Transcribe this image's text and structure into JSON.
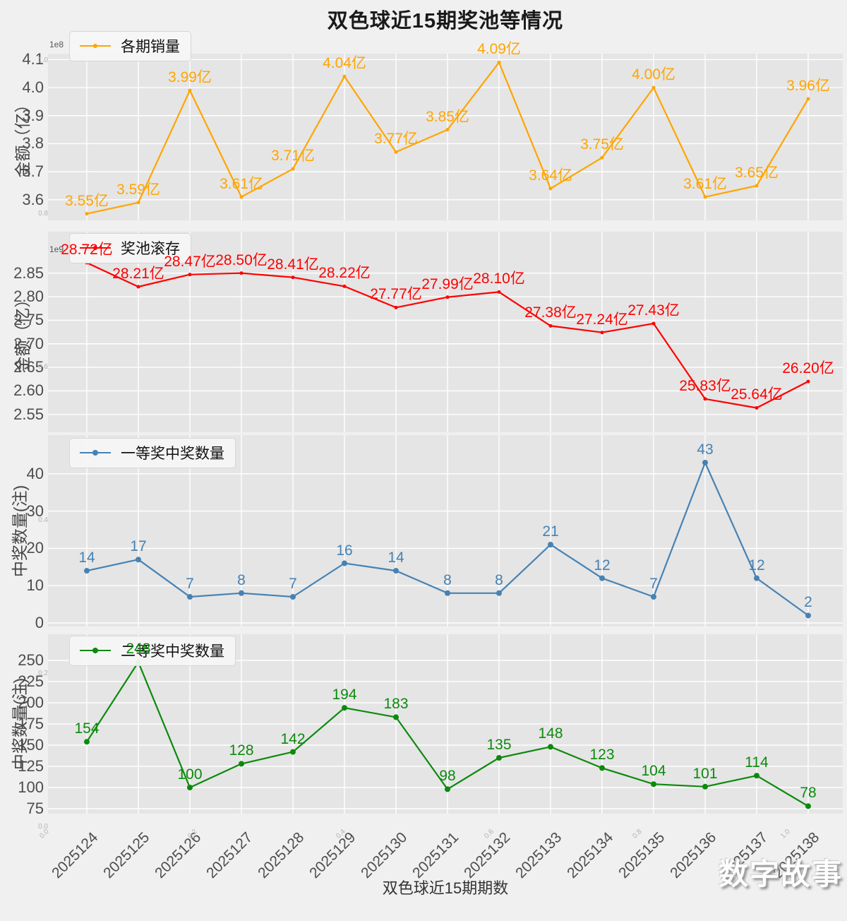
{
  "title": "双色球近15期奖池等情况",
  "xlabel": "双色球近15期期数",
  "watermark": "数字故事",
  "chart_data": {
    "type": "line",
    "title": "双色球近15期奖池等情况",
    "xlabel": "双色球近15期期数",
    "grid": true,
    "legend_position": "upper-left",
    "categories": [
      "2025124",
      "2025125",
      "2025126",
      "2025127",
      "2025128",
      "2025129",
      "2025130",
      "2025131",
      "2025132",
      "2025133",
      "2025134",
      "2025135",
      "2025136",
      "2025137",
      "2025138"
    ],
    "hidden_axis_ticks_bottom": [
      "0.0",
      "0.2",
      "0.4",
      "0.6",
      "0.8",
      "1.0"
    ],
    "hidden_axis_ticks_left": [
      "1.0",
      "0.8",
      "0.6",
      "0.4",
      "0.2",
      "0.0"
    ],
    "charts": [
      {
        "type": "line",
        "legend": "各期销量",
        "color": "#ffa500",
        "ylabel": "金额（亿）",
        "offset_text": "1e8",
        "yticks": [
          "4.1",
          "4.0",
          "3.9",
          "3.8",
          "3.7",
          "3.6"
        ],
        "ylim": [
          3.52,
          4.12
        ],
        "values": [
          3.55,
          3.59,
          3.99,
          3.61,
          3.71,
          4.04,
          3.77,
          3.85,
          4.09,
          3.64,
          3.75,
          4.0,
          3.61,
          3.65,
          3.96
        ],
        "labels": [
          "3.55亿",
          "3.59亿",
          "3.99亿",
          "3.61亿",
          "3.71亿",
          "4.04亿",
          "3.77亿",
          "3.85亿",
          "4.09亿",
          "3.64亿",
          "3.75亿",
          "4.00亿",
          "3.61亿",
          "3.65亿",
          "3.96亿"
        ]
      },
      {
        "type": "line",
        "legend": "奖池滚存",
        "color": "#fe0000",
        "ylabel": "金额（亿）",
        "offset_text": "1e9",
        "yticks": [
          "2.85",
          "2.80",
          "2.75",
          "2.70",
          "2.65",
          "2.60",
          "2.55"
        ],
        "ylim": [
          25.1,
          29.3
        ],
        "values": [
          28.72,
          28.21,
          28.47,
          28.5,
          28.41,
          28.22,
          27.77,
          27.99,
          28.1,
          27.38,
          27.24,
          27.43,
          25.83,
          25.64,
          26.2
        ],
        "labels": [
          "28.72亿",
          "28.21亿",
          "28.47亿",
          "28.50亿",
          "28.41亿",
          "28.22亿",
          "27.77亿",
          "27.99亿",
          "28.10亿",
          "27.38亿",
          "27.24亿",
          "27.43亿",
          "25.83亿",
          "25.64亿",
          "26.20亿"
        ]
      },
      {
        "type": "line",
        "legend": "一等奖中奖数量",
        "color": "#4682b4",
        "ylabel": "中奖数量(注)",
        "offset_text": "",
        "yticks": [
          "40",
          "30",
          "20",
          "10",
          "0"
        ],
        "ylim": [
          -1,
          50.4
        ],
        "values": [
          14,
          17,
          7,
          8,
          7,
          16,
          14,
          8,
          8,
          21,
          12,
          7,
          43,
          12,
          2
        ],
        "labels": [
          "14",
          "17",
          "7",
          "8",
          "7",
          "16",
          "14",
          "8",
          "8",
          "21",
          "12",
          "7",
          "43",
          "12",
          "2"
        ]
      },
      {
        "type": "line",
        "legend": "二等奖中奖数量",
        "color": "#0c8a0c",
        "ylabel": "中奖数量(注)",
        "offset_text": "",
        "yticks": [
          "250",
          "225",
          "200",
          "175",
          "150",
          "125",
          "100",
          "75"
        ],
        "ylim": [
          69,
          281
        ],
        "values": [
          154,
          248,
          100,
          128,
          142,
          194,
          183,
          98,
          135,
          148,
          123,
          104,
          101,
          114,
          78
        ],
        "labels": [
          "154",
          "248",
          "100",
          "128",
          "142",
          "194",
          "183",
          "98",
          "135",
          "148",
          "123",
          "104",
          "101",
          "114",
          "78"
        ]
      }
    ]
  }
}
